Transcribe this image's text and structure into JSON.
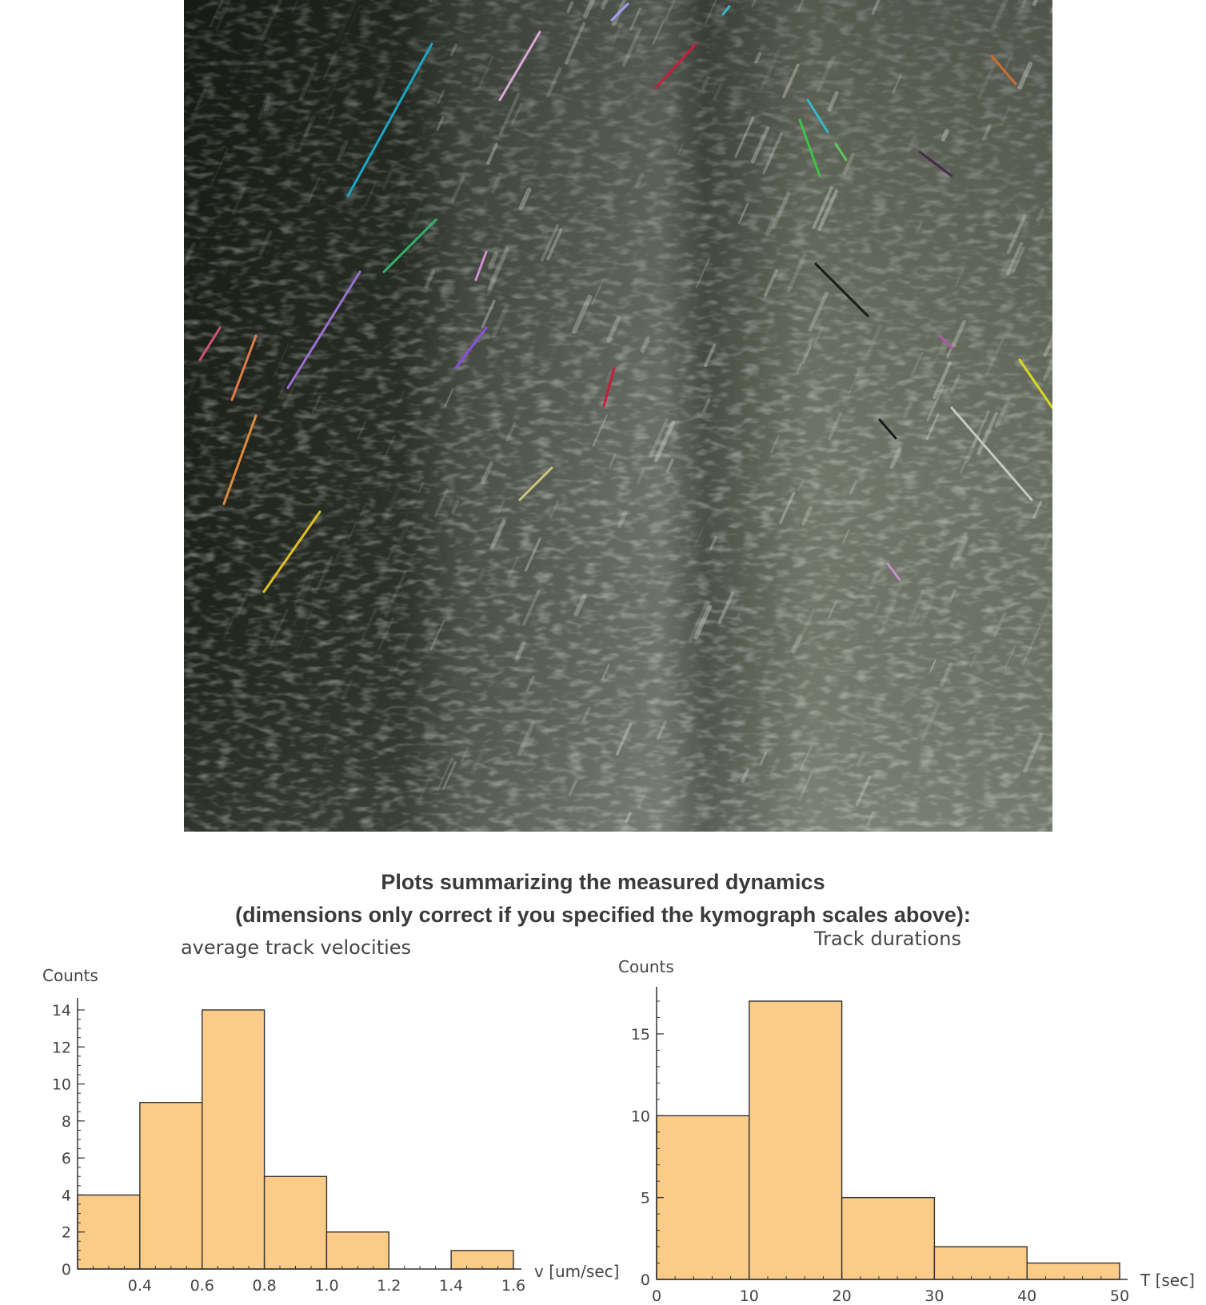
{
  "image": {
    "description_icon": "kymograph-image"
  },
  "captions": {
    "line1": "Plots summarizing the measured dynamics",
    "line2": "(dimensions only correct if you specified the kymograph scales above):"
  },
  "colors": {
    "bar_fill": "#FBCC88",
    "bar_stroke": "#333333",
    "axis": "#333333",
    "text": "#444444"
  },
  "chart_data": [
    {
      "type": "bar",
      "title": "average track velocities",
      "ylabel": "Counts",
      "xlabel": "v [um/sec]",
      "bins": [
        [
          0.2,
          0.4
        ],
        [
          0.4,
          0.6
        ],
        [
          0.6,
          0.8
        ],
        [
          0.8,
          1.0
        ],
        [
          1.0,
          1.2
        ],
        [
          1.2,
          1.4
        ],
        [
          1.4,
          1.6
        ]
      ],
      "values": [
        4,
        9,
        14,
        5,
        2,
        0,
        1
      ],
      "xlim": [
        0.2,
        1.6
      ],
      "ylim": [
        0,
        14
      ],
      "xticks": [
        0.4,
        0.6,
        0.8,
        1.0,
        1.2,
        1.4,
        1.6
      ],
      "xtick_labels": [
        "0.4",
        "0.6",
        "0.8",
        "1.0",
        "1.2",
        "1.4",
        "1.6"
      ],
      "yticks": [
        0,
        2,
        4,
        6,
        8,
        10,
        12,
        14
      ],
      "ytick_labels": [
        "0",
        "2",
        "4",
        "6",
        "8",
        "10",
        "12",
        "14"
      ]
    },
    {
      "type": "bar",
      "title": "Track durations",
      "ylabel": "Counts",
      "xlabel": "T [sec]",
      "bins": [
        [
          0,
          10
        ],
        [
          10,
          20
        ],
        [
          20,
          30
        ],
        [
          30,
          40
        ],
        [
          40,
          50
        ]
      ],
      "values": [
        10,
        17,
        5,
        2,
        1
      ],
      "xlim": [
        0,
        50
      ],
      "ylim": [
        0,
        17
      ],
      "xticks": [
        0,
        10,
        20,
        30,
        40,
        50
      ],
      "xtick_labels": [
        "0",
        "10",
        "20",
        "30",
        "40",
        "50"
      ],
      "yticks": [
        0,
        5,
        10,
        15
      ],
      "ytick_labels": [
        "0",
        "5",
        "10",
        "15"
      ]
    }
  ]
}
